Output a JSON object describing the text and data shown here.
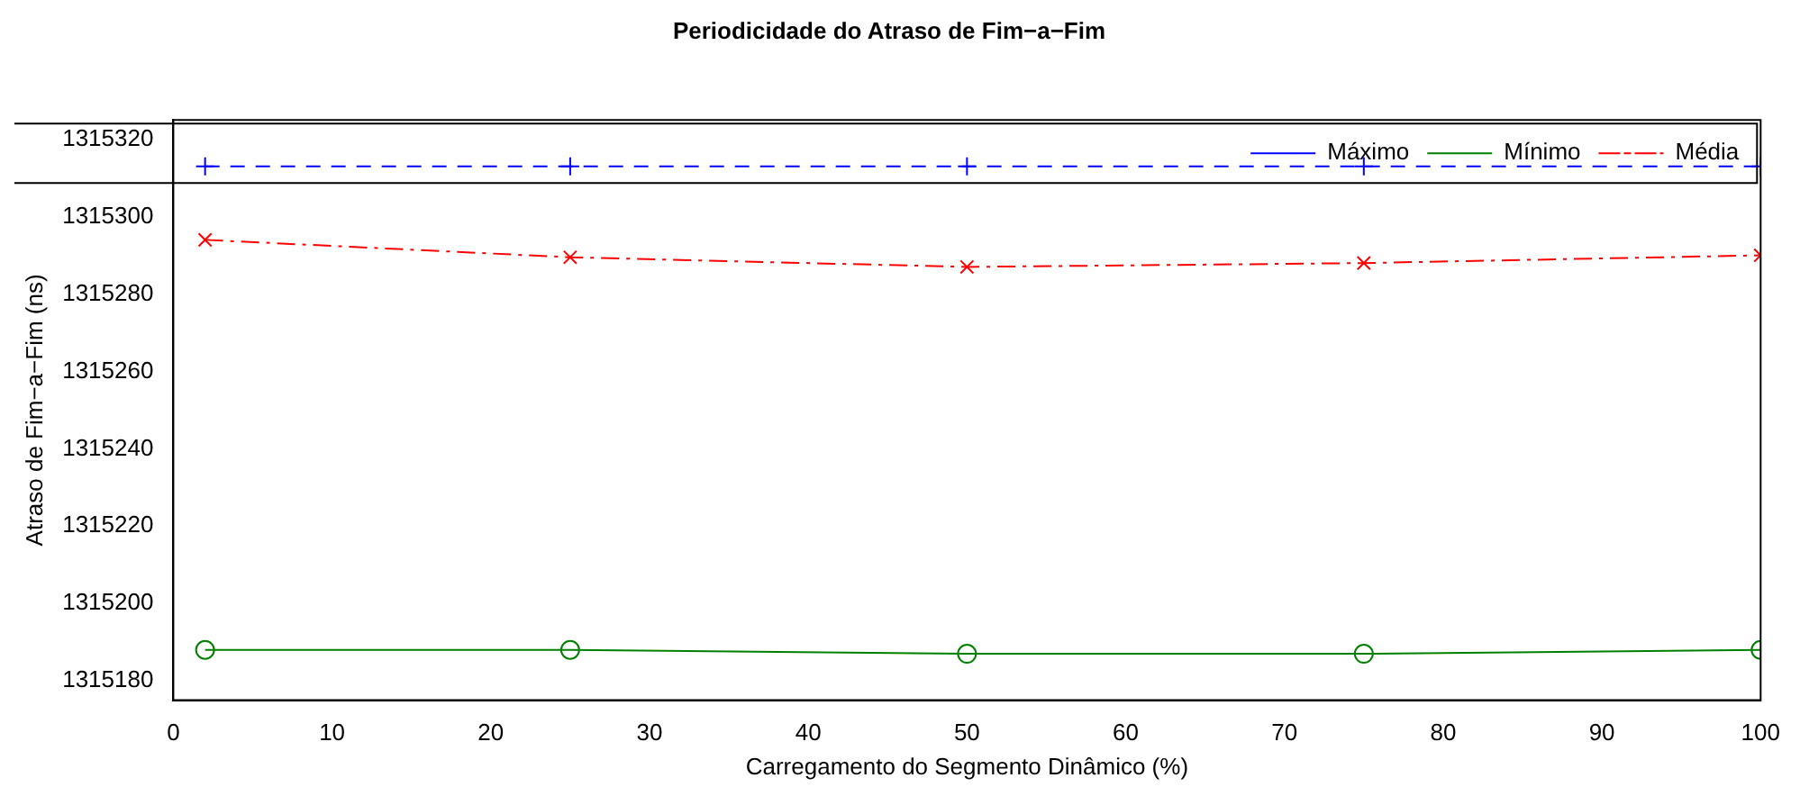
{
  "chart_data": {
    "type": "line",
    "title": "Periodicidade do Atraso de Fim−a−Fim",
    "xlabel": "Carregamento do Segmento Dinâmico (%)",
    "ylabel": "Atraso de Fim−a−Fim (ns)",
    "x": [
      2,
      25,
      50,
      75,
      100
    ],
    "series": [
      {
        "name": "Máximo",
        "color": "#0000ff",
        "marker": "plus",
        "line_style": "dashed",
        "values": [
          1315313,
          1315313,
          1315313,
          1315313,
          1315313
        ]
      },
      {
        "name": "Mínimo",
        "color": "#008000",
        "marker": "circle",
        "line_style": "solid",
        "values": [
          1315188,
          1315188,
          1315187,
          1315187,
          1315188
        ]
      },
      {
        "name": "Média",
        "color": "#ff0000",
        "marker": "cross",
        "line_style": "dashdot",
        "values": [
          1315294,
          1315289.5,
          1315287,
          1315288,
          1315290
        ]
      }
    ],
    "xlim": [
      0,
      100
    ],
    "xticks": [
      0,
      10,
      20,
      30,
      40,
      50,
      60,
      70,
      80,
      90,
      100
    ],
    "ylim": [
      1315175,
      1315325
    ],
    "yticks": [
      1315180,
      1315200,
      1315220,
      1315240,
      1315260,
      1315280,
      1315300,
      1315320
    ],
    "grid": false,
    "legend": "top right"
  }
}
